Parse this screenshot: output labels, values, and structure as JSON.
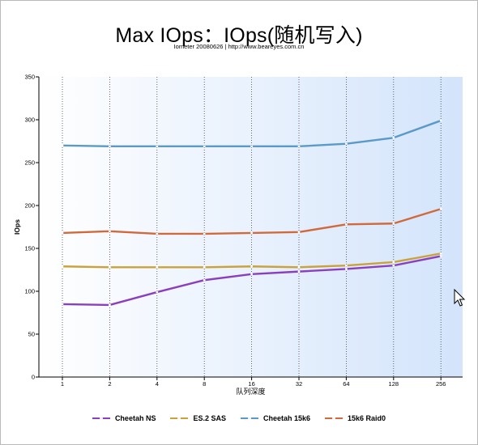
{
  "header": {
    "title": "Max IOps：IOps(随机写入)",
    "subtitle": "Iometer 20080626 | http://www.beareyes.com.cn"
  },
  "colors": {
    "plot_bg_start": "#ffffff",
    "plot_bg_end": "#d3e4fb",
    "grid": "#444444",
    "axis": "#000000"
  },
  "chart_data": {
    "type": "line",
    "title": "Max IOps：IOps(随机写入)",
    "subtitle": "Iometer 20080626 | http://www.beareyes.com.cn",
    "xlabel": "队列深度",
    "ylabel": "IOps",
    "categories": [
      "1",
      "2",
      "4",
      "8",
      "16",
      "32",
      "64",
      "128",
      "256"
    ],
    "ylim": [
      0,
      350
    ],
    "yticks": [
      0,
      50,
      100,
      150,
      200,
      250,
      300,
      350
    ],
    "grid": "vertical dotted",
    "legend_position": "bottom",
    "series": [
      {
        "name": "Cheetah NS",
        "color": "#8a3fbf",
        "values": [
          85,
          84,
          99,
          113,
          120,
          123,
          126,
          130,
          141
        ]
      },
      {
        "name": "ES.2 SAS",
        "color": "#c9a23c",
        "values": [
          129,
          128,
          128,
          128,
          129,
          128,
          130,
          134,
          144
        ]
      },
      {
        "name": "Cheetah 15k6",
        "color": "#5b9ac7",
        "values": [
          270,
          269,
          269,
          269,
          269,
          269,
          272,
          279,
          299
        ]
      },
      {
        "name": "15k6 Raid0",
        "color": "#d06a3c",
        "values": [
          168,
          170,
          167,
          167,
          168,
          169,
          178,
          179,
          196
        ]
      }
    ]
  }
}
